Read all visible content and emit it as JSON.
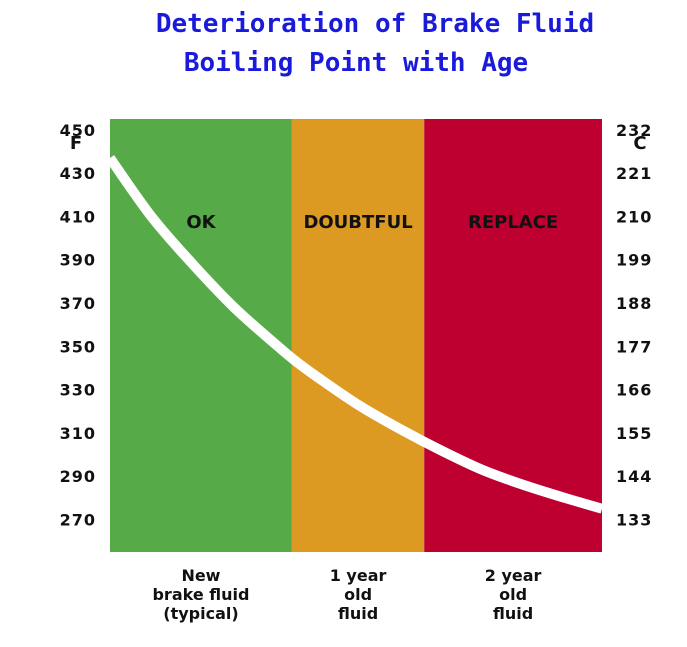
{
  "chart_data": {
    "type": "area",
    "title_lines": [
      "Deterioration of Brake Fluid",
      "Boiling Point with Age"
    ],
    "left_axis_unit": "F",
    "right_axis_unit": "C",
    "yticks_f": [
      "450",
      "430",
      "410",
      "390",
      "370",
      "350",
      "330",
      "310",
      "290",
      "270"
    ],
    "yticks_c": [
      "232",
      "221",
      "210",
      "199",
      "188",
      "177",
      "166",
      "155",
      "144",
      "133"
    ],
    "ylim_f": [
      255,
      455
    ],
    "xlim_years": [
      0,
      2.38
    ],
    "zones": [
      {
        "label": "OK",
        "from_year": 0,
        "to_year": 0.88,
        "color": "#56aa47"
      },
      {
        "label": "DOUBTFUL",
        "from_year": 0.88,
        "to_year": 1.52,
        "color": "#dc9a22"
      },
      {
        "label": "REPLACE",
        "from_year": 1.52,
        "to_year": 2.38,
        "color": "#bd0030"
      }
    ],
    "categories": [
      {
        "lines": [
          "New",
          "brake fluid",
          "(typical)"
        ]
      },
      {
        "lines": [
          "1 year",
          "old",
          "fluid"
        ]
      },
      {
        "lines": [
          "2 year",
          "old",
          "fluid"
        ]
      }
    ],
    "category_positions_years": [
      0.44,
      1.2,
      1.95
    ],
    "series": [
      {
        "color": "#ffffff",
        "x": [
          0,
          0.2,
          0.4,
          0.6,
          0.8,
          0.9,
          1.0,
          1.2,
          1.4,
          1.6,
          1.8,
          2.0,
          2.2,
          2.38
        ],
        "y": [
          437,
          410,
          388,
          368,
          351,
          343,
          336,
          323,
          312,
          302,
          293,
          286,
          280,
          275
        ]
      }
    ],
    "grid": false,
    "legend": "none"
  }
}
